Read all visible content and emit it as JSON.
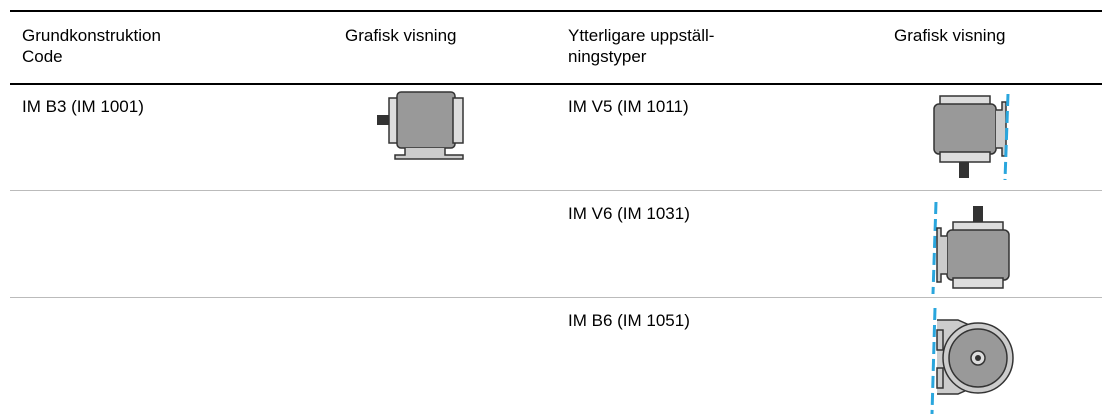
{
  "table": {
    "header": [
      [
        "Grundkonstruktion",
        "Code"
      ],
      [
        "Grafisk visning"
      ],
      [
        "Ytterligare uppställ-",
        "ningstyper"
      ],
      [
        "Grafisk visning"
      ]
    ],
    "rows": [
      {
        "code": "IM B3 (IM 1001)",
        "type": "IM V5 (IM 1011)"
      },
      {
        "type": "IM V6 (IM 1031)"
      },
      {
        "type": "IM B6 (IM 1051)"
      }
    ]
  }
}
